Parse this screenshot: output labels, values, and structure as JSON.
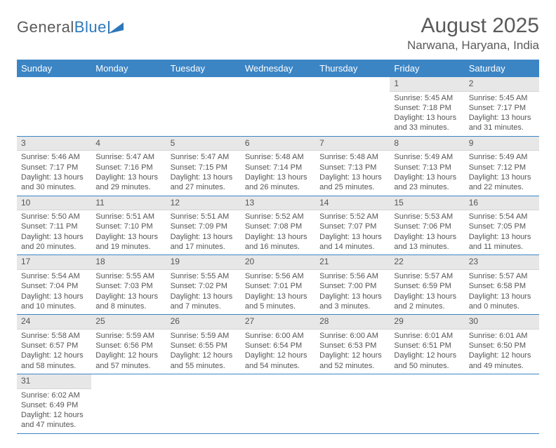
{
  "logo": {
    "left": "General",
    "right": "Blue"
  },
  "title": "August 2025",
  "location": "Narwana, Haryana, India",
  "colors": {
    "header_bg": "#3b85c5",
    "header_fg": "#ffffff",
    "daynum_bg": "#e7e7e7",
    "row_border": "#3b85c5",
    "text": "#555555",
    "title_text": "#5a5a5a"
  },
  "weekdays": [
    "Sunday",
    "Monday",
    "Tuesday",
    "Wednesday",
    "Thursday",
    "Friday",
    "Saturday"
  ],
  "weeks": [
    [
      null,
      null,
      null,
      null,
      null,
      {
        "d": "1",
        "sr": "5:45 AM",
        "ss": "7:18 PM",
        "dl": "13 hours and 33 minutes."
      },
      {
        "d": "2",
        "sr": "5:45 AM",
        "ss": "7:17 PM",
        "dl": "13 hours and 31 minutes."
      }
    ],
    [
      {
        "d": "3",
        "sr": "5:46 AM",
        "ss": "7:17 PM",
        "dl": "13 hours and 30 minutes."
      },
      {
        "d": "4",
        "sr": "5:47 AM",
        "ss": "7:16 PM",
        "dl": "13 hours and 29 minutes."
      },
      {
        "d": "5",
        "sr": "5:47 AM",
        "ss": "7:15 PM",
        "dl": "13 hours and 27 minutes."
      },
      {
        "d": "6",
        "sr": "5:48 AM",
        "ss": "7:14 PM",
        "dl": "13 hours and 26 minutes."
      },
      {
        "d": "7",
        "sr": "5:48 AM",
        "ss": "7:13 PM",
        "dl": "13 hours and 25 minutes."
      },
      {
        "d": "8",
        "sr": "5:49 AM",
        "ss": "7:13 PM",
        "dl": "13 hours and 23 minutes."
      },
      {
        "d": "9",
        "sr": "5:49 AM",
        "ss": "7:12 PM",
        "dl": "13 hours and 22 minutes."
      }
    ],
    [
      {
        "d": "10",
        "sr": "5:50 AM",
        "ss": "7:11 PM",
        "dl": "13 hours and 20 minutes."
      },
      {
        "d": "11",
        "sr": "5:51 AM",
        "ss": "7:10 PM",
        "dl": "13 hours and 19 minutes."
      },
      {
        "d": "12",
        "sr": "5:51 AM",
        "ss": "7:09 PM",
        "dl": "13 hours and 17 minutes."
      },
      {
        "d": "13",
        "sr": "5:52 AM",
        "ss": "7:08 PM",
        "dl": "13 hours and 16 minutes."
      },
      {
        "d": "14",
        "sr": "5:52 AM",
        "ss": "7:07 PM",
        "dl": "13 hours and 14 minutes."
      },
      {
        "d": "15",
        "sr": "5:53 AM",
        "ss": "7:06 PM",
        "dl": "13 hours and 13 minutes."
      },
      {
        "d": "16",
        "sr": "5:54 AM",
        "ss": "7:05 PM",
        "dl": "13 hours and 11 minutes."
      }
    ],
    [
      {
        "d": "17",
        "sr": "5:54 AM",
        "ss": "7:04 PM",
        "dl": "13 hours and 10 minutes."
      },
      {
        "d": "18",
        "sr": "5:55 AM",
        "ss": "7:03 PM",
        "dl": "13 hours and 8 minutes."
      },
      {
        "d": "19",
        "sr": "5:55 AM",
        "ss": "7:02 PM",
        "dl": "13 hours and 7 minutes."
      },
      {
        "d": "20",
        "sr": "5:56 AM",
        "ss": "7:01 PM",
        "dl": "13 hours and 5 minutes."
      },
      {
        "d": "21",
        "sr": "5:56 AM",
        "ss": "7:00 PM",
        "dl": "13 hours and 3 minutes."
      },
      {
        "d": "22",
        "sr": "5:57 AM",
        "ss": "6:59 PM",
        "dl": "13 hours and 2 minutes."
      },
      {
        "d": "23",
        "sr": "5:57 AM",
        "ss": "6:58 PM",
        "dl": "13 hours and 0 minutes."
      }
    ],
    [
      {
        "d": "24",
        "sr": "5:58 AM",
        "ss": "6:57 PM",
        "dl": "12 hours and 58 minutes."
      },
      {
        "d": "25",
        "sr": "5:59 AM",
        "ss": "6:56 PM",
        "dl": "12 hours and 57 minutes."
      },
      {
        "d": "26",
        "sr": "5:59 AM",
        "ss": "6:55 PM",
        "dl": "12 hours and 55 minutes."
      },
      {
        "d": "27",
        "sr": "6:00 AM",
        "ss": "6:54 PM",
        "dl": "12 hours and 54 minutes."
      },
      {
        "d": "28",
        "sr": "6:00 AM",
        "ss": "6:53 PM",
        "dl": "12 hours and 52 minutes."
      },
      {
        "d": "29",
        "sr": "6:01 AM",
        "ss": "6:51 PM",
        "dl": "12 hours and 50 minutes."
      },
      {
        "d": "30",
        "sr": "6:01 AM",
        "ss": "6:50 PM",
        "dl": "12 hours and 49 minutes."
      }
    ],
    [
      {
        "d": "31",
        "sr": "6:02 AM",
        "ss": "6:49 PM",
        "dl": "12 hours and 47 minutes."
      },
      null,
      null,
      null,
      null,
      null,
      null
    ]
  ],
  "labels": {
    "sunrise": "Sunrise:",
    "sunset": "Sunset:",
    "daylight": "Daylight:"
  }
}
